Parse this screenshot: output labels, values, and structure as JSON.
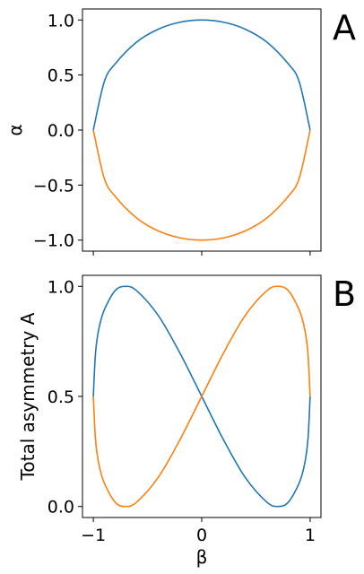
{
  "chart_data": [
    {
      "type": "line",
      "panel_label": "A",
      "xlabel": "",
      "ylabel": "α",
      "xlim": [
        -1.1,
        1.1
      ],
      "ylim": [
        -1.1,
        1.1
      ],
      "xticks": [
        -1,
        0,
        1
      ],
      "yticks": [
        {
          "value": 1.0,
          "label": "1.0"
        },
        {
          "value": 0.5,
          "label": "0.5"
        },
        {
          "value": 0.0,
          "label": "0.0"
        },
        {
          "value": -0.5,
          "label": "−0.5"
        },
        {
          "value": -1.0,
          "label": "−1.0"
        }
      ],
      "grid": false,
      "series": [
        {
          "color": "#1f77b4",
          "x": [
            -1.0,
            -0.9,
            -0.8,
            -0.6,
            -0.4,
            -0.2,
            0.0,
            0.2,
            0.4,
            0.6,
            0.8,
            0.9,
            1.0
          ],
          "y": [
            0.0,
            0.436,
            0.6,
            0.8,
            0.917,
            0.98,
            1.0,
            0.98,
            0.917,
            0.8,
            0.6,
            0.436,
            0.0
          ]
        },
        {
          "color": "#ff7f0e",
          "x": [
            -1.0,
            -0.9,
            -0.8,
            -0.6,
            -0.4,
            -0.2,
            0.0,
            0.2,
            0.4,
            0.6,
            0.8,
            0.9,
            1.0
          ],
          "y": [
            0.0,
            -0.436,
            -0.6,
            -0.8,
            -0.917,
            -0.98,
            -1.0,
            -0.98,
            -0.917,
            -0.8,
            -0.6,
            -0.436,
            0.0
          ]
        }
      ]
    },
    {
      "type": "line",
      "panel_label": "B",
      "xlabel": "β",
      "ylabel": "Total asymmetry A",
      "xlim": [
        -1.1,
        1.1
      ],
      "ylim": [
        -0.05,
        1.05
      ],
      "xticks": [
        {
          "value": -1,
          "label": "−1"
        },
        {
          "value": 0,
          "label": "0"
        },
        {
          "value": 1,
          "label": "1"
        }
      ],
      "yticks": [
        {
          "value": 1.0,
          "label": "1.0"
        },
        {
          "value": 0.5,
          "label": "0.5"
        },
        {
          "value": 0.0,
          "label": "0.0"
        }
      ],
      "grid": false,
      "series": [
        {
          "color": "#1f77b4",
          "x": [
            -1.0,
            -0.98,
            -0.95,
            -0.9,
            -0.8,
            -0.707,
            -0.6,
            -0.4,
            -0.2,
            0.0,
            0.2,
            0.4,
            0.6,
            0.707,
            0.8,
            0.9,
            0.95,
            0.98,
            1.0
          ],
          "y": [
            0.5,
            0.695,
            0.805,
            0.892,
            0.98,
            1.0,
            0.98,
            0.867,
            0.696,
            0.5,
            0.304,
            0.133,
            0.02,
            0.0,
            0.02,
            0.108,
            0.195,
            0.305,
            0.5
          ]
        },
        {
          "color": "#ff7f0e",
          "x": [
            -1.0,
            -0.98,
            -0.95,
            -0.9,
            -0.8,
            -0.707,
            -0.6,
            -0.4,
            -0.2,
            0.0,
            0.2,
            0.4,
            0.6,
            0.707,
            0.8,
            0.9,
            0.95,
            0.98,
            1.0
          ],
          "y": [
            0.5,
            0.305,
            0.195,
            0.108,
            0.02,
            0.0,
            0.02,
            0.133,
            0.304,
            0.5,
            0.696,
            0.867,
            0.98,
            1.0,
            0.98,
            0.892,
            0.805,
            0.695,
            0.5
          ]
        }
      ]
    }
  ]
}
